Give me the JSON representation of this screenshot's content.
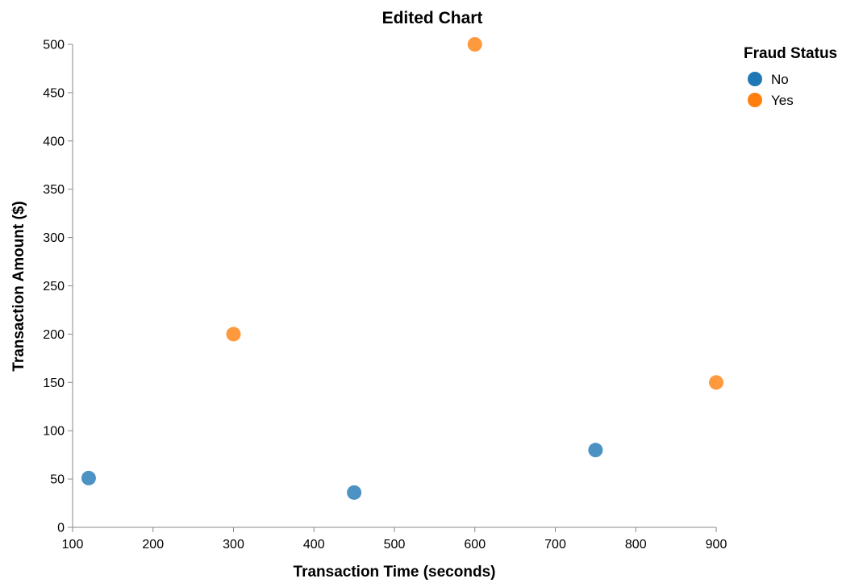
{
  "chart_data": {
    "type": "scatter",
    "title": "Edited Chart",
    "xlabel": "Transaction Time (seconds)",
    "ylabel": "Transaction Amount ($)",
    "xlim": [
      100,
      900
    ],
    "ylim": [
      0,
      500
    ],
    "x_ticks": [
      100,
      200,
      300,
      400,
      500,
      600,
      700,
      800,
      900
    ],
    "y_ticks": [
      0,
      50,
      100,
      150,
      200,
      250,
      300,
      350,
      400,
      450,
      500
    ],
    "grid": false,
    "legend": {
      "title": "Fraud Status",
      "placement": "top-right"
    },
    "series": [
      {
        "name": "No",
        "color": "#1f77b4",
        "points": [
          {
            "x": 120,
            "y": 51
          },
          {
            "x": 450,
            "y": 36
          },
          {
            "x": 750,
            "y": 80
          }
        ]
      },
      {
        "name": "Yes",
        "color": "#ff7f0e",
        "points": [
          {
            "x": 300,
            "y": 200
          },
          {
            "x": 600,
            "y": 500
          },
          {
            "x": 900,
            "y": 150
          }
        ]
      }
    ]
  }
}
